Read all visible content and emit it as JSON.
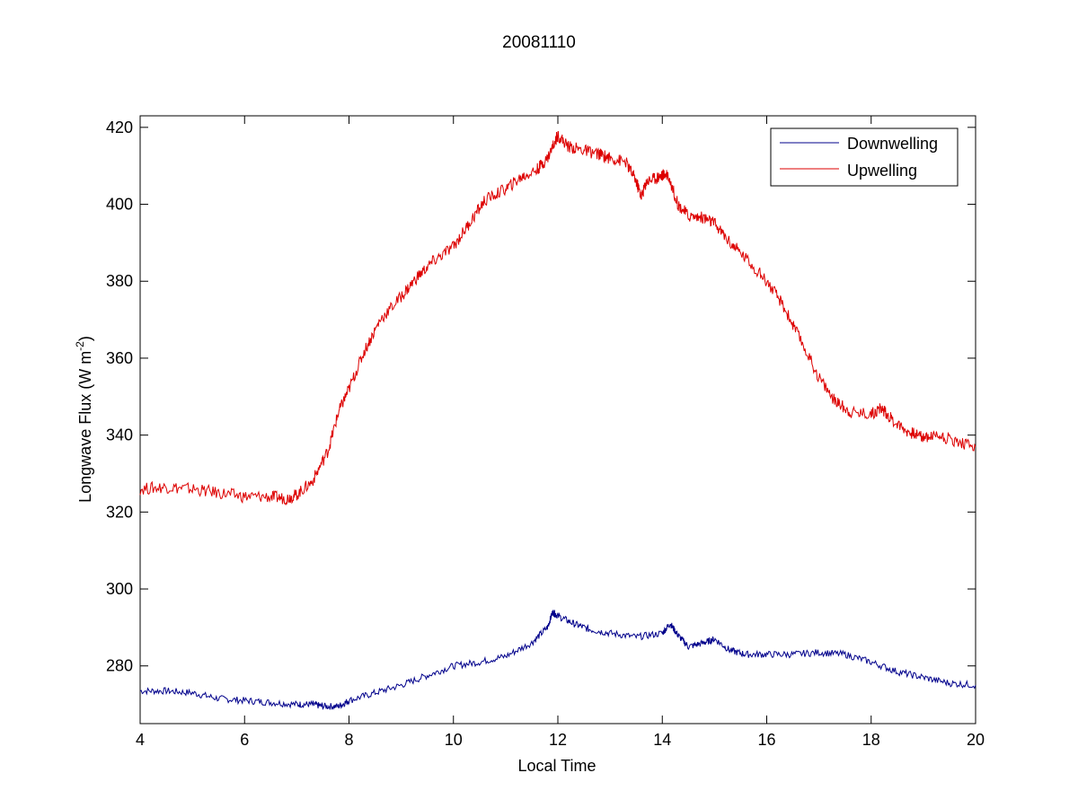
{
  "chart_data": {
    "type": "line",
    "title": "20081110",
    "xlabel": "Local Time",
    "ylabel_main": "Longwave Flux (W m",
    "ylabel_sup": "-2",
    "ylabel_close": ")",
    "xlim": [
      4,
      20
    ],
    "ylim": [
      265,
      423
    ],
    "xticks": [
      "4",
      "6",
      "8",
      "10",
      "12",
      "14",
      "16",
      "18",
      "20"
    ],
    "yticks": [
      "280",
      "300",
      "320",
      "340",
      "360",
      "380",
      "400",
      "420"
    ],
    "grid": false,
    "legend_position": "top-right",
    "series": [
      {
        "name": "Downwelling",
        "color": "#00008b",
        "x": [
          4.0,
          4.5,
          5.0,
          5.5,
          6.0,
          6.5,
          7.0,
          7.3,
          7.5,
          7.8,
          8.0,
          8.5,
          9.0,
          9.5,
          10.0,
          10.5,
          11.0,
          11.5,
          11.8,
          11.9,
          12.0,
          12.3,
          12.6,
          13.0,
          13.5,
          14.0,
          14.15,
          14.3,
          14.5,
          14.8,
          15.0,
          15.3,
          15.6,
          16.0,
          16.5,
          17.0,
          17.5,
          18.0,
          18.5,
          19.0,
          19.5,
          20.0
        ],
        "y": [
          273.5,
          273.5,
          273.0,
          271.5,
          271.0,
          270.5,
          270.0,
          270.0,
          269.5,
          269.5,
          271.0,
          273.0,
          275.0,
          277.5,
          280.0,
          281.0,
          282.5,
          286.0,
          290.0,
          294.0,
          293.0,
          291.0,
          289.5,
          288.5,
          287.5,
          288.5,
          291.0,
          288.0,
          285.0,
          286.0,
          287.0,
          284.0,
          283.0,
          283.0,
          283.0,
          283.5,
          283.0,
          281.0,
          278.5,
          277.0,
          275.5,
          275.0
        ]
      },
      {
        "name": "Upwelling",
        "color": "#dd0000",
        "x": [
          4.0,
          4.5,
          5.0,
          5.5,
          6.0,
          6.5,
          6.8,
          7.0,
          7.3,
          7.6,
          7.8,
          8.0,
          8.3,
          8.6,
          9.0,
          9.3,
          9.6,
          10.0,
          10.3,
          10.6,
          11.0,
          11.3,
          11.6,
          11.8,
          12.0,
          12.2,
          12.5,
          12.8,
          13.0,
          13.3,
          13.5,
          13.6,
          13.7,
          13.9,
          14.0,
          14.1,
          14.3,
          14.5,
          14.8,
          15.0,
          15.3,
          15.6,
          16.0,
          16.3,
          16.6,
          17.0,
          17.3,
          17.6,
          18.0,
          18.2,
          18.4,
          18.7,
          19.0,
          19.3,
          19.6,
          20.0
        ],
        "y": [
          326.0,
          326.5,
          326.0,
          325.0,
          324.0,
          324.0,
          323.5,
          324.5,
          328.0,
          336.0,
          346.0,
          352.0,
          362.0,
          370.0,
          376.0,
          381.0,
          385.0,
          389.0,
          395.0,
          401.0,
          404.0,
          407.0,
          409.0,
          412.0,
          418.0,
          415.0,
          414.0,
          413.0,
          412.0,
          411.0,
          406.0,
          402.0,
          406.0,
          407.0,
          407.5,
          408.0,
          400.0,
          397.0,
          396.5,
          395.0,
          390.0,
          386.0,
          380.0,
          374.0,
          366.0,
          355.0,
          349.0,
          346.0,
          345.5,
          347.0,
          344.0,
          341.0,
          339.5,
          340.0,
          338.5,
          337.0
        ]
      }
    ]
  }
}
